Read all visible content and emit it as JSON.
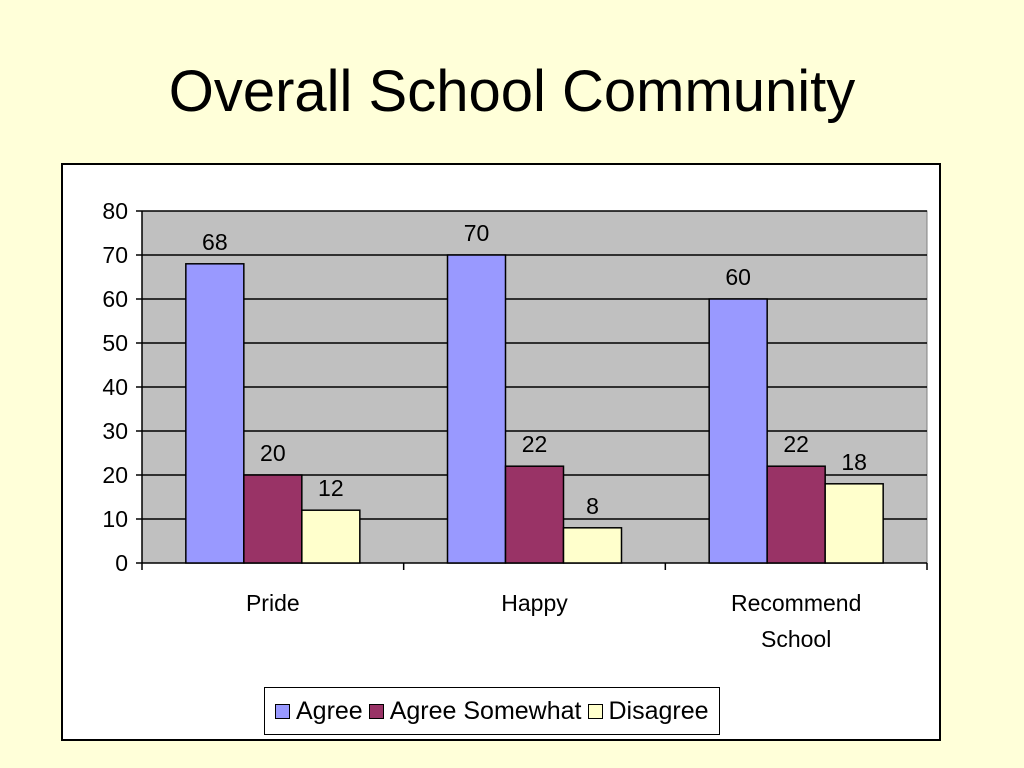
{
  "slide": {
    "title": "Overall School Community"
  },
  "chart_data": {
    "type": "bar",
    "categories": [
      "Pride",
      "Happy",
      "Recommend School"
    ],
    "category_lines": [
      [
        "Pride"
      ],
      [
        "Happy"
      ],
      [
        "Recommend",
        "School"
      ]
    ],
    "series": [
      {
        "name": "Agree",
        "values": [
          68,
          70,
          60
        ],
        "color": "#9999ff"
      },
      {
        "name": "Agree Somewhat",
        "values": [
          20,
          22,
          22
        ],
        "color": "#993366"
      },
      {
        "name": "Disagree",
        "values": [
          12,
          8,
          18
        ],
        "color": "#ffffcc"
      }
    ],
    "ylim": [
      0,
      80
    ],
    "yticks": [
      0,
      10,
      20,
      30,
      40,
      50,
      60,
      70,
      80
    ],
    "title": "",
    "xlabel": "",
    "ylabel": "",
    "grid": true,
    "plot_background": "#c0c0c0",
    "legend_position": "bottom"
  }
}
